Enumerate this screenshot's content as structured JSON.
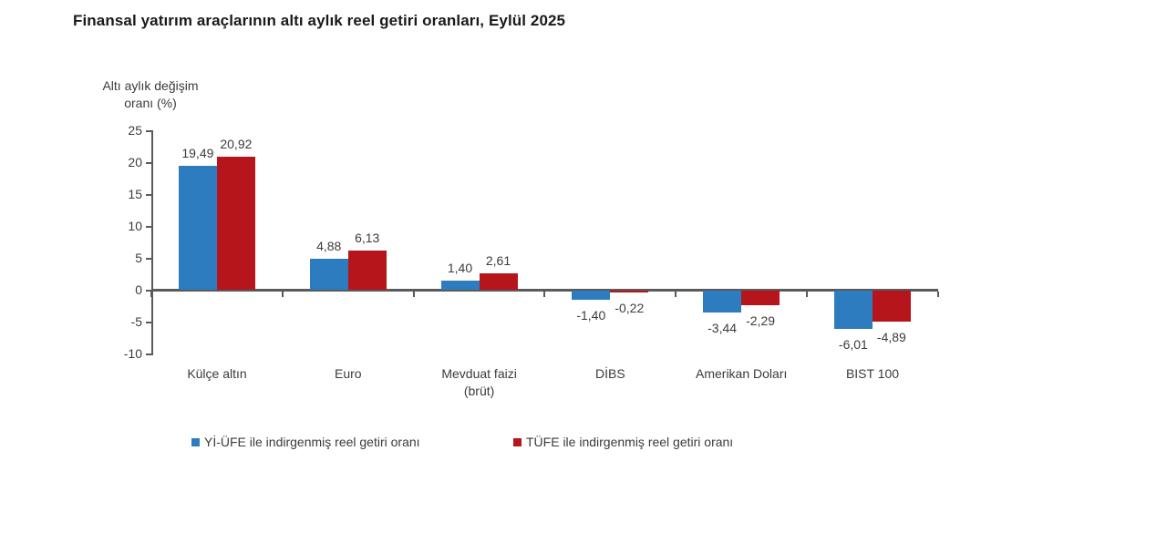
{
  "title": "Finansal yatırım araçlarının altı aylık reel getiri oranları, Eylül 2025",
  "chart_data": {
    "type": "bar",
    "title": "Finansal yatırım araçlarının altı aylık reel getiri oranları, Eylül 2025",
    "y_axis_label_lines": [
      "Altı aylık değişim",
      "oranı (%)"
    ],
    "ylabel": "Altı aylık değişim oranı (%)",
    "xlabel": "",
    "categories": [
      "Külçe altın",
      "Euro",
      "Mevduat faizi",
      "DİBS",
      "Amerikan Doları",
      "BIST 100"
    ],
    "category_label_lines": [
      [
        "Külçe altın"
      ],
      [
        "Euro"
      ],
      [
        "Mevduat faizi",
        "(brüt)"
      ],
      [
        "DİBS"
      ],
      [
        "Amerikan Doları"
      ],
      [
        "BIST 100"
      ]
    ],
    "series": [
      {
        "name": "Yİ-ÜFE ile indirgenmiş reel getiri oranı",
        "color": "#2e7cc0",
        "values": [
          19.49,
          4.88,
          1.4,
          -1.4,
          -3.44,
          -6.01
        ],
        "value_labels": [
          "19,49",
          "4,88",
          "1,40",
          "-1,40",
          "-3,44",
          "-6,01"
        ]
      },
      {
        "name": "TÜFE ile indirgenmiş reel getiri oranı",
        "color": "#b5151b",
        "values": [
          20.92,
          6.13,
          2.61,
          -0.22,
          -2.29,
          -4.89
        ],
        "value_labels": [
          "20,92",
          "6,13",
          "2,61",
          "-0,22",
          "-2,29",
          "-4,89"
        ]
      }
    ],
    "y_ticks": [
      25,
      20,
      15,
      10,
      5,
      0,
      -5,
      -10
    ],
    "ylim": [
      -10,
      25
    ],
    "decimal_separator": ",",
    "grid": false,
    "legend_position": "bottom",
    "colors": {
      "axis": "#5a5a5a",
      "text": "#3b3b3b",
      "title": "#1a1a1a",
      "background": "#ffffff"
    }
  }
}
